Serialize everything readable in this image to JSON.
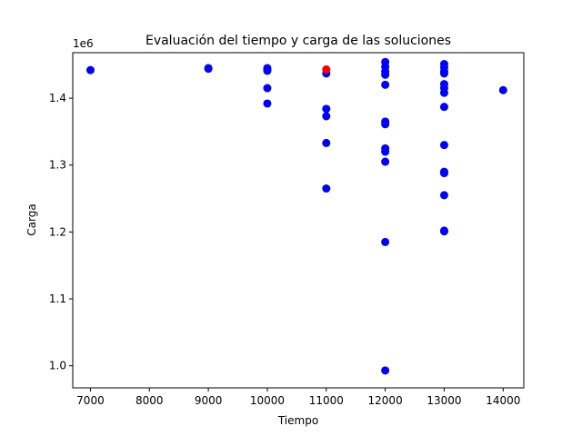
{
  "chart_data": {
    "type": "scatter",
    "title": "Evaluación del tiempo y carga de las soluciones",
    "xlabel": "Tiempo",
    "ylabel": "Carga",
    "y_offset_label": "1e6",
    "xlim": [
      6700,
      14350
    ],
    "ylim": [
      967000,
      1468000
    ],
    "x_ticks": [
      7000,
      8000,
      9000,
      10000,
      11000,
      12000,
      13000,
      14000
    ],
    "y_ticks": [
      1000000,
      1100000,
      1200000,
      1300000,
      1400000
    ],
    "y_tick_labels": [
      "1.0",
      "1.1",
      "1.2",
      "1.3",
      "1.4"
    ],
    "grid": false,
    "series": [
      {
        "color": "#0000ff",
        "points": [
          {
            "x": 7000,
            "y": 1442000
          },
          {
            "x": 9000,
            "y": 1445000
          },
          {
            "x": 9000,
            "y": 1444000
          },
          {
            "x": 10000,
            "y": 1445000
          },
          {
            "x": 10000,
            "y": 1443000
          },
          {
            "x": 10000,
            "y": 1441000
          },
          {
            "x": 10000,
            "y": 1415000
          },
          {
            "x": 10000,
            "y": 1392000
          },
          {
            "x": 11000,
            "y": 1437000
          },
          {
            "x": 11000,
            "y": 1384000
          },
          {
            "x": 11000,
            "y": 1373000
          },
          {
            "x": 11000,
            "y": 1333000
          },
          {
            "x": 11000,
            "y": 1265000
          },
          {
            "x": 12000,
            "y": 1454000
          },
          {
            "x": 12000,
            "y": 1447000
          },
          {
            "x": 12000,
            "y": 1440000
          },
          {
            "x": 12000,
            "y": 1435000
          },
          {
            "x": 12000,
            "y": 1420000
          },
          {
            "x": 12000,
            "y": 1365000
          },
          {
            "x": 12000,
            "y": 1361000
          },
          {
            "x": 12000,
            "y": 1325000
          },
          {
            "x": 12000,
            "y": 1320000
          },
          {
            "x": 12000,
            "y": 1305000
          },
          {
            "x": 12000,
            "y": 1185000
          },
          {
            "x": 12000,
            "y": 993000
          },
          {
            "x": 13000,
            "y": 1451000
          },
          {
            "x": 13000,
            "y": 1446000
          },
          {
            "x": 13000,
            "y": 1440000
          },
          {
            "x": 13000,
            "y": 1437000
          },
          {
            "x": 13000,
            "y": 1421000
          },
          {
            "x": 13000,
            "y": 1415000
          },
          {
            "x": 13000,
            "y": 1408000
          },
          {
            "x": 13000,
            "y": 1387000
          },
          {
            "x": 13000,
            "y": 1330000
          },
          {
            "x": 13000,
            "y": 1290000
          },
          {
            "x": 13000,
            "y": 1288000
          },
          {
            "x": 13000,
            "y": 1255000
          },
          {
            "x": 13000,
            "y": 1202000
          },
          {
            "x": 13000,
            "y": 1201000
          },
          {
            "x": 14000,
            "y": 1412000
          }
        ]
      },
      {
        "color": "#ff0000",
        "points": [
          {
            "x": 11000,
            "y": 1443000
          }
        ]
      }
    ]
  }
}
